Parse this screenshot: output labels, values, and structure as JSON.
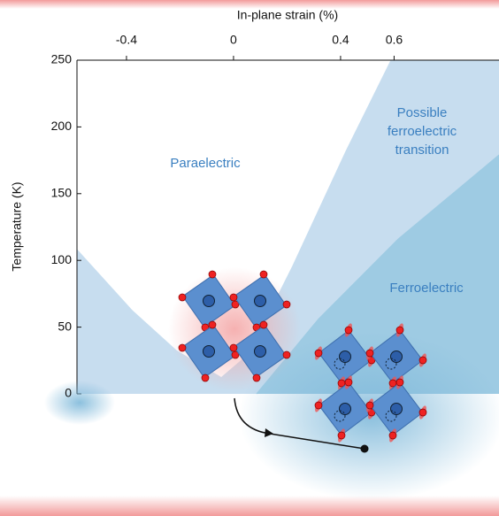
{
  "chart_data": {
    "type": "area",
    "xlabel": "In-plane strain (%)",
    "ylabel": "Temperature (K)",
    "xlim": [
      -0.585,
      0.992
    ],
    "xticks": [
      -0.4,
      0,
      0.4,
      0.6
    ],
    "ylim": [
      0,
      250
    ],
    "yticks": [
      0,
      50,
      100,
      150,
      200,
      250
    ],
    "annotations": [
      "Paraelectric",
      "Possible\nferroelectric\ntransition",
      "Ferroelectric"
    ],
    "series": [
      {
        "color": "#ffffff",
        "x": [
          -0.585,
          -0.377,
          -0.212,
          -0.046,
          0.053,
          0.218,
          0.417,
          0.585
        ],
        "values": [
          109,
          63,
          33,
          13,
          30,
          96,
          182,
          250
        ]
      },
      {
        "color": "#9ecbe3",
        "x": [
          0.086,
          0.317,
          0.615,
          0.992
        ],
        "values": [
          0,
          56,
          116,
          179
        ]
      }
    ],
    "background_color": "#c7ddef"
  }
}
